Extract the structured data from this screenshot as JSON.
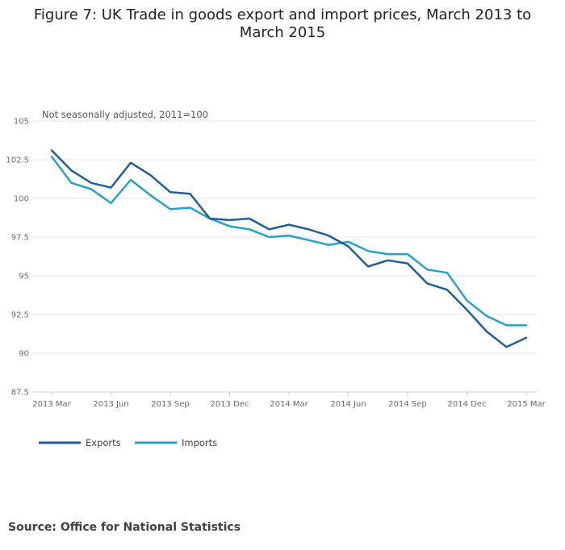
{
  "title": "Figure 7: UK Trade in goods export and import prices, March 2013 to March 2015",
  "source": "Source: Office for National Statistics",
  "colors": {
    "exports": "#206095",
    "imports": "#27a0cc",
    "grid": "#e6e6e6",
    "axis": "#cccccc"
  },
  "chart_data": {
    "type": "line",
    "subtitle": "Not seasonally adjusted, 2011=100",
    "ylim": [
      87.5,
      105
    ],
    "yticks": [
      "105",
      "102.5",
      "100",
      "97.5",
      "95",
      "92.5",
      "90",
      "87.5"
    ],
    "ytick_values": [
      105,
      102.5,
      100,
      97.5,
      95,
      92.5,
      90,
      87.5
    ],
    "x": [
      "2013 Mar",
      "2013 Apr",
      "2013 May",
      "2013 Jun",
      "2013 Jul",
      "2013 Aug",
      "2013 Sep",
      "2013 Oct",
      "2013 Nov",
      "2013 Dec",
      "2014 Jan",
      "2014 Feb",
      "2014 Mar",
      "2014 Apr",
      "2014 May",
      "2014 Jun",
      "2014 Jul",
      "2014 Aug",
      "2014 Sep",
      "2014 Oct",
      "2014 Nov",
      "2014 Dec",
      "2015 Jan",
      "2015 Feb",
      "2015 Mar"
    ],
    "xticks": [
      "2013 Mar",
      "2013 Jun",
      "2013 Sep",
      "2013 Dec",
      "2014 Mar",
      "2014 Jun",
      "2014 Sep",
      "2014 Dec",
      "2015 Mar"
    ],
    "legend_position": "bottom-left",
    "series": [
      {
        "name": "Exports",
        "values": [
          103.1,
          101.8,
          101.0,
          100.7,
          102.3,
          101.5,
          100.4,
          100.3,
          98.7,
          98.6,
          98.7,
          98.0,
          98.3,
          98.0,
          97.6,
          96.9,
          95.6,
          96.0,
          95.8,
          94.5,
          94.1,
          92.8,
          91.4,
          90.4,
          91.0
        ]
      },
      {
        "name": "Imports",
        "values": [
          102.7,
          101.0,
          100.6,
          99.7,
          101.2,
          100.2,
          99.3,
          99.4,
          98.7,
          98.2,
          98.0,
          97.5,
          97.6,
          97.3,
          97.0,
          97.2,
          96.6,
          96.4,
          96.4,
          95.4,
          95.2,
          93.4,
          92.4,
          91.8,
          91.8
        ]
      }
    ]
  }
}
